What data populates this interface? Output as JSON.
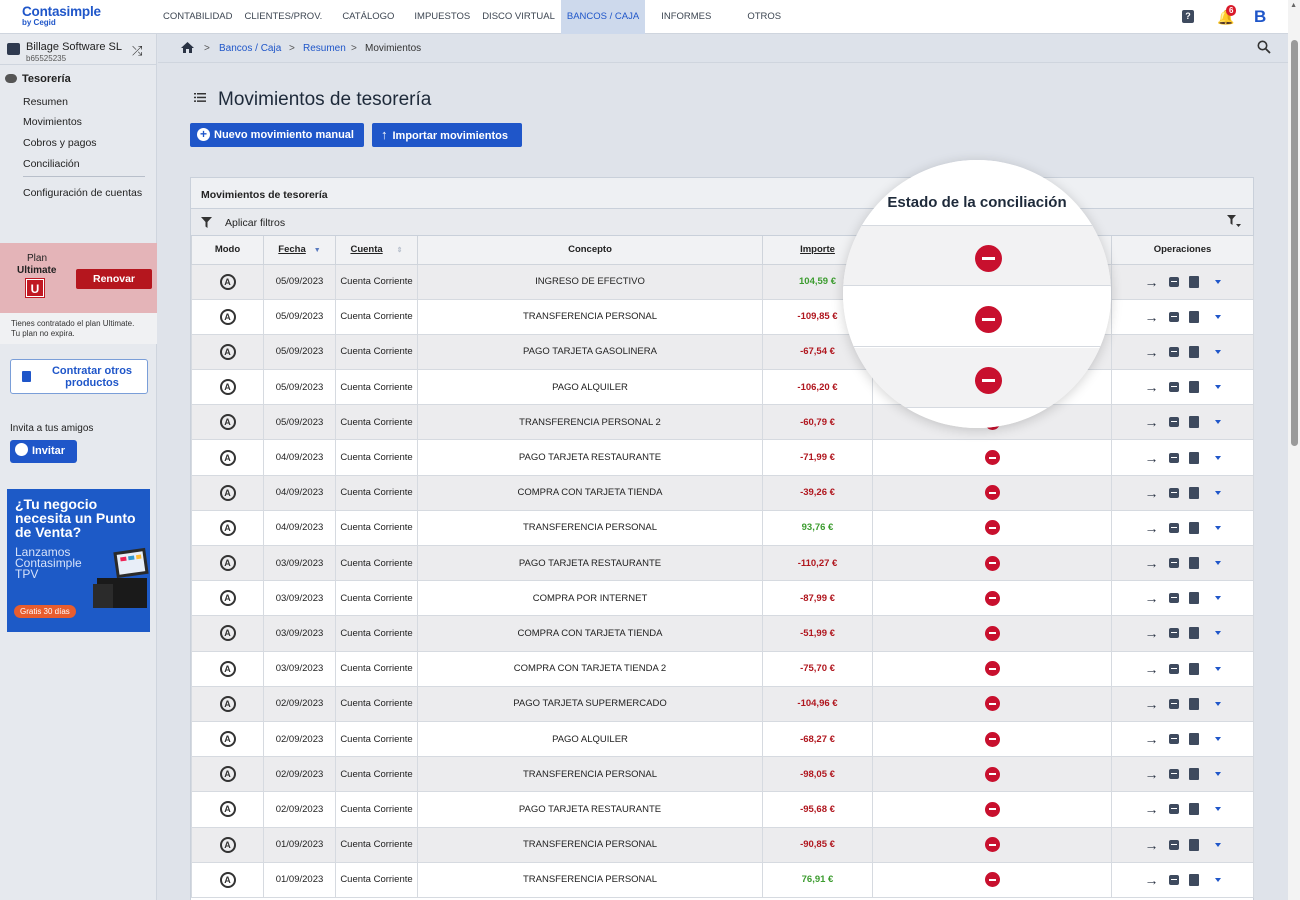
{
  "brand": {
    "name": "Contasimple",
    "sub": "by Cegid"
  },
  "nav": [
    "CONTABILIDAD",
    "CLIENTES/PROV.",
    "CATÁLOGO",
    "IMPUESTOS",
    "DISCO VIRTUAL",
    "BANCOS / CAJA",
    "INFORMES",
    "OTROS"
  ],
  "nav_active": "BANCOS / CAJA",
  "notifications": "6",
  "avatar": "B",
  "help_icon": "?",
  "company": {
    "name": "Billage Software SL",
    "id": "b65525235"
  },
  "sidebar": {
    "section": "Tesorería",
    "links": [
      "Resumen",
      "Movimientos",
      "Cobros y pagos",
      "Conciliación"
    ],
    "config": "Configuración de cuentas",
    "plan_label": "Plan",
    "plan_name": "Ultimate",
    "plan_badge": "U",
    "renew": "Renovar",
    "plan_note1": "Tienes contratado el plan Ultimate.",
    "plan_note2": "Tu plan no expira.",
    "hire": "Contratar otros productos",
    "invite_label": "Invita a tus amigos",
    "invite_btn": "Invitar",
    "promo_head": "¿Tu negocio necesita un Punto de Venta?",
    "promo_sub": "Lanzamos Contasimple TPV",
    "promo_cta": "Gratis 30 días"
  },
  "breadcrumb": {
    "a": "Bancos / Caja",
    "b": "Resumen",
    "c": "Movimientos",
    "sep": ">"
  },
  "page_title": "Movimientos de tesorería",
  "buttons": {
    "new": "Nuevo movimiento manual",
    "import": "Importar movimientos"
  },
  "panel_title": "Movimientos de tesorería",
  "filters": "Aplicar filtros",
  "columns": {
    "modo": "Modo",
    "fecha": "Fecha",
    "cuenta": "Cuenta",
    "concepto": "Concepto",
    "importe": "Importe",
    "estado": "Estado de la conciliación",
    "ops": "Operaciones"
  },
  "mode_letter": "A",
  "rows": [
    {
      "fecha": "05/09/2023",
      "cuenta": "Cuenta Corriente",
      "concepto": "INGRESO DE EFECTIVO",
      "importe": "104,59 €",
      "pos": true
    },
    {
      "fecha": "05/09/2023",
      "cuenta": "Cuenta Corriente",
      "concepto": "TRANSFERENCIA PERSONAL",
      "importe": "-109,85 €",
      "pos": false
    },
    {
      "fecha": "05/09/2023",
      "cuenta": "Cuenta Corriente",
      "concepto": "PAGO TARJETA GASOLINERA",
      "importe": "-67,54 €",
      "pos": false
    },
    {
      "fecha": "05/09/2023",
      "cuenta": "Cuenta Corriente",
      "concepto": "PAGO ALQUILER",
      "importe": "-106,20 €",
      "pos": false
    },
    {
      "fecha": "05/09/2023",
      "cuenta": "Cuenta Corriente",
      "concepto": "TRANSFERENCIA PERSONAL 2",
      "importe": "-60,79 €",
      "pos": false
    },
    {
      "fecha": "04/09/2023",
      "cuenta": "Cuenta Corriente",
      "concepto": "PAGO TARJETA RESTAURANTE",
      "importe": "-71,99 €",
      "pos": false
    },
    {
      "fecha": "04/09/2023",
      "cuenta": "Cuenta Corriente",
      "concepto": "COMPRA CON TARJETA TIENDA",
      "importe": "-39,26 €",
      "pos": false
    },
    {
      "fecha": "04/09/2023",
      "cuenta": "Cuenta Corriente",
      "concepto": "TRANSFERENCIA PERSONAL",
      "importe": "93,76 €",
      "pos": true
    },
    {
      "fecha": "03/09/2023",
      "cuenta": "Cuenta Corriente",
      "concepto": "PAGO TARJETA RESTAURANTE",
      "importe": "-110,27 €",
      "pos": false
    },
    {
      "fecha": "03/09/2023",
      "cuenta": "Cuenta Corriente",
      "concepto": "COMPRA POR INTERNET",
      "importe": "-87,99 €",
      "pos": false
    },
    {
      "fecha": "03/09/2023",
      "cuenta": "Cuenta Corriente",
      "concepto": "COMPRA CON TARJETA TIENDA",
      "importe": "-51,99 €",
      "pos": false
    },
    {
      "fecha": "03/09/2023",
      "cuenta": "Cuenta Corriente",
      "concepto": "COMPRA CON TARJETA TIENDA 2",
      "importe": "-75,70 €",
      "pos": false
    },
    {
      "fecha": "02/09/2023",
      "cuenta": "Cuenta Corriente",
      "concepto": "PAGO TARJETA SUPERMERCADO",
      "importe": "-104,96 €",
      "pos": false
    },
    {
      "fecha": "02/09/2023",
      "cuenta": "Cuenta Corriente",
      "concepto": "PAGO ALQUILER",
      "importe": "-68,27 €",
      "pos": false
    },
    {
      "fecha": "02/09/2023",
      "cuenta": "Cuenta Corriente",
      "concepto": "TRANSFERENCIA PERSONAL",
      "importe": "-98,05 €",
      "pos": false
    },
    {
      "fecha": "02/09/2023",
      "cuenta": "Cuenta Corriente",
      "concepto": "PAGO TARJETA RESTAURANTE",
      "importe": "-95,68 €",
      "pos": false
    },
    {
      "fecha": "01/09/2023",
      "cuenta": "Cuenta Corriente",
      "concepto": "TRANSFERENCIA PERSONAL",
      "importe": "-90,85 €",
      "pos": false
    },
    {
      "fecha": "01/09/2023",
      "cuenta": "Cuenta Corriente",
      "concepto": "TRANSFERENCIA PERSONAL",
      "importe": "76,91 €",
      "pos": true
    }
  ],
  "colors": {
    "accent": "#1f56c9",
    "positive": "#3c9c2f",
    "negative": "#b0161e",
    "status_red": "#c8102e",
    "plan_bg": "#e4b4b8"
  }
}
